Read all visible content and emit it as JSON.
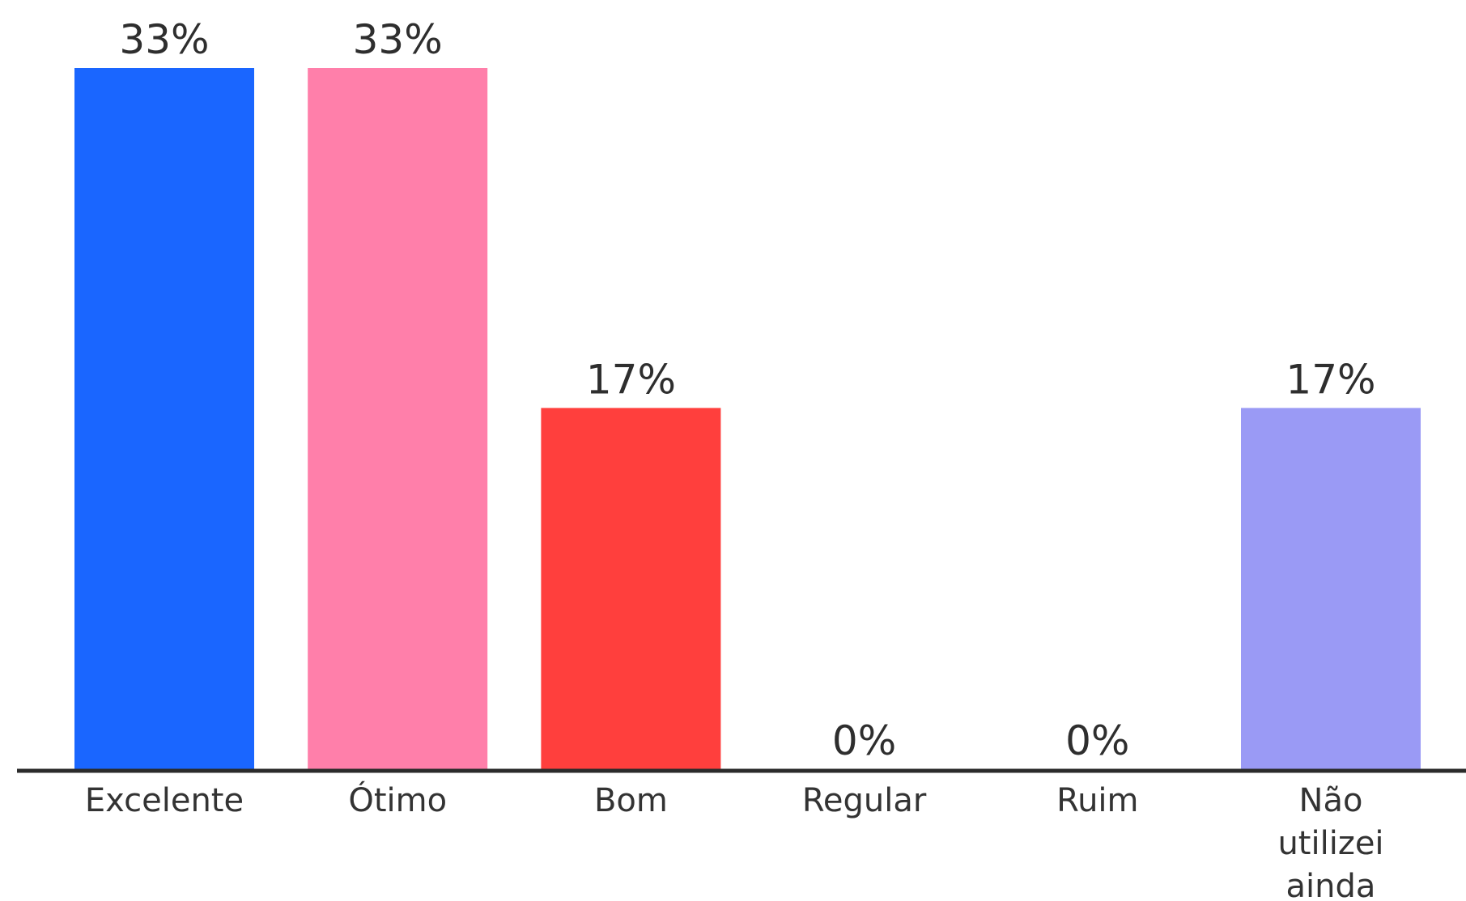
{
  "chart_data": {
    "type": "bar",
    "categories": [
      "Excelente",
      "Ótimo",
      "Bom",
      "Regular",
      "Ruim",
      "Não utilizei ainda"
    ],
    "category_lines": [
      [
        "Excelente"
      ],
      [
        "Ótimo"
      ],
      [
        "Bom"
      ],
      [
        "Regular"
      ],
      [
        "Ruim"
      ],
      [
        "Não",
        "utilizei",
        "ainda"
      ]
    ],
    "values": [
      33,
      33,
      17,
      0,
      0,
      17
    ],
    "value_labels": [
      "33%",
      "33%",
      "17%",
      "0%",
      "0%",
      "17%"
    ],
    "colors": [
      "#1a66ff",
      "#ff7faa",
      "#ff3f3d",
      "#ffffff",
      "#ffffff",
      "#9a9af5"
    ],
    "ylim": [
      0,
      33
    ],
    "grid": false,
    "legend": "none",
    "title": "",
    "xlabel": "",
    "ylabel": ""
  }
}
